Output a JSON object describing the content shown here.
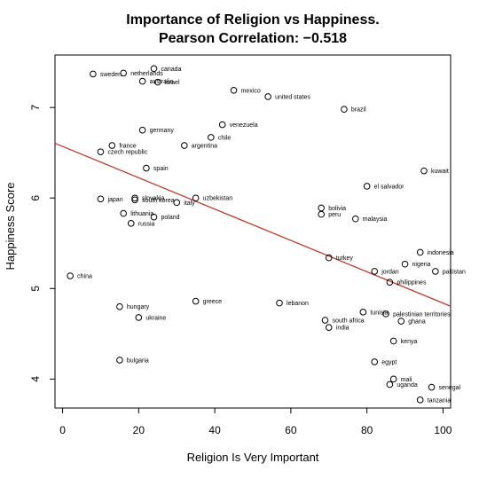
{
  "chart_data": {
    "type": "scatter",
    "title": "Importance of Religion vs Happiness.",
    "subtitle": "Pearson Correlation: −0.518",
    "xlabel": "Religion Is Very Important",
    "ylabel": "Happiness Score",
    "xlim": [
      -2,
      102
    ],
    "ylim": [
      3.68,
      7.58
    ],
    "x_ticks": [
      "0",
      "20",
      "40",
      "60",
      "80",
      "100"
    ],
    "y_ticks": [
      "4",
      "5",
      "6",
      "7"
    ],
    "grid": false,
    "trendline": {
      "color": "#c0392b",
      "intercept": 6.57,
      "slope": -0.01731
    },
    "points": [
      {
        "label": "sweden",
        "x": 8,
        "y": 7.37
      },
      {
        "label": "netherlands",
        "x": 16,
        "y": 7.38
      },
      {
        "label": "canada",
        "x": 24,
        "y": 7.43
      },
      {
        "label": "australia",
        "x": 21,
        "y": 7.29
      },
      {
        "label": "israel",
        "x": 25,
        "y": 7.28
      },
      {
        "label": "mexico",
        "x": 45,
        "y": 7.19
      },
      {
        "label": "united states",
        "x": 54,
        "y": 7.12
      },
      {
        "label": "brazil",
        "x": 74,
        "y": 6.98
      },
      {
        "label": "venezuela",
        "x": 42,
        "y": 6.81
      },
      {
        "label": "germany",
        "x": 21,
        "y": 6.75
      },
      {
        "label": "chile",
        "x": 39,
        "y": 6.67
      },
      {
        "label": "france",
        "x": 13,
        "y": 6.58
      },
      {
        "label": "argentina",
        "x": 32,
        "y": 6.58
      },
      {
        "label": "czech republic",
        "x": 10,
        "y": 6.51
      },
      {
        "label": "spain",
        "x": 22,
        "y": 6.33
      },
      {
        "label": "kuwait",
        "x": 95,
        "y": 6.3
      },
      {
        "label": "el salvador",
        "x": 80,
        "y": 6.13
      },
      {
        "label": "japan",
        "x": 10,
        "y": 5.99
      },
      {
        "label": "slovakia",
        "x": 19,
        "y": 6.0
      },
      {
        "label": "south korea",
        "x": 19,
        "y": 5.98
      },
      {
        "label": "uzbekistan",
        "x": 35,
        "y": 6.0
      },
      {
        "label": "italy",
        "x": 30,
        "y": 5.95
      },
      {
        "label": "bolivia",
        "x": 68,
        "y": 5.89
      },
      {
        "label": "peru",
        "x": 68,
        "y": 5.82
      },
      {
        "label": "lithuania",
        "x": 16,
        "y": 5.83
      },
      {
        "label": "poland",
        "x": 24,
        "y": 5.79
      },
      {
        "label": "malaysia",
        "x": 77,
        "y": 5.77
      },
      {
        "label": "russia",
        "x": 18,
        "y": 5.72
      },
      {
        "label": "indonesia",
        "x": 94,
        "y": 5.4
      },
      {
        "label": "turkey",
        "x": 70,
        "y": 5.34
      },
      {
        "label": "nigeria",
        "x": 90,
        "y": 5.27
      },
      {
        "label": "jordan",
        "x": 82,
        "y": 5.19
      },
      {
        "label": "pakistan",
        "x": 98,
        "y": 5.19
      },
      {
        "label": "china",
        "x": 2,
        "y": 5.14
      },
      {
        "label": "philippines",
        "x": 86,
        "y": 5.07
      },
      {
        "label": "greece",
        "x": 35,
        "y": 4.86
      },
      {
        "label": "lebanon",
        "x": 57,
        "y": 4.84
      },
      {
        "label": "hungary",
        "x": 15,
        "y": 4.8
      },
      {
        "label": "tunisia",
        "x": 79,
        "y": 4.74
      },
      {
        "label": "palestinian territories",
        "x": 85,
        "y": 4.72
      },
      {
        "label": "ukraine",
        "x": 20,
        "y": 4.68
      },
      {
        "label": "south africa",
        "x": 69,
        "y": 4.65
      },
      {
        "label": "ghana",
        "x": 89,
        "y": 4.64
      },
      {
        "label": "india",
        "x": 70,
        "y": 4.57
      },
      {
        "label": "kenya",
        "x": 87,
        "y": 4.42
      },
      {
        "label": "bulgaria",
        "x": 15,
        "y": 4.21
      },
      {
        "label": "egypt",
        "x": 82,
        "y": 4.19
      },
      {
        "label": "mali",
        "x": 87,
        "y": 4.0
      },
      {
        "label": "uganda",
        "x": 86,
        "y": 3.94
      },
      {
        "label": "senegal",
        "x": 97,
        "y": 3.91
      },
      {
        "label": "tanzania",
        "x": 94,
        "y": 3.77
      }
    ]
  }
}
